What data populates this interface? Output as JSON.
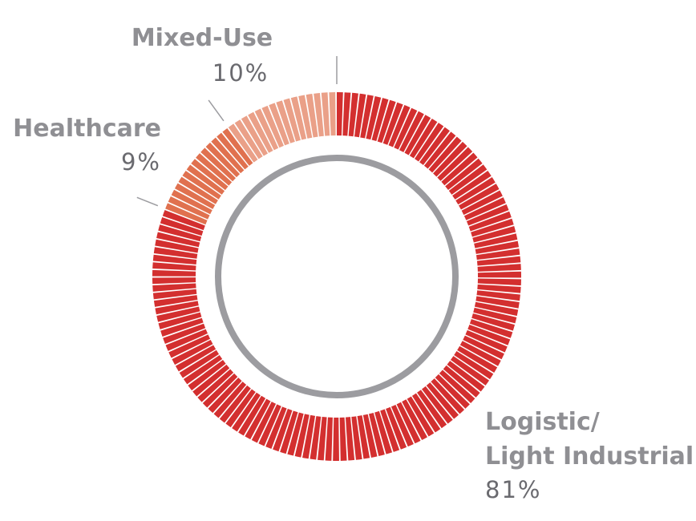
{
  "chart_data": {
    "type": "pie",
    "title": "",
    "series": [
      {
        "name": "Logistic/ Light Industrial",
        "label_lines": [
          "Logistic/",
          "Light Industrial"
        ],
        "value": 81,
        "value_label": "81%",
        "color": "#d32f2f"
      },
      {
        "name": "Healthcare",
        "label_lines": [
          "Healthcare"
        ],
        "value": 9,
        "value_label": "9%",
        "color": "#e0714f"
      },
      {
        "name": "Mixed-Use",
        "label_lines": [
          "Mixed-Use"
        ],
        "value": 10,
        "value_label": "10%",
        "color": "#eaa088"
      }
    ],
    "inner_ring_color": "#9c9ca0",
    "label_color": "#8f8f93",
    "value_color": "#6a6a6f"
  }
}
